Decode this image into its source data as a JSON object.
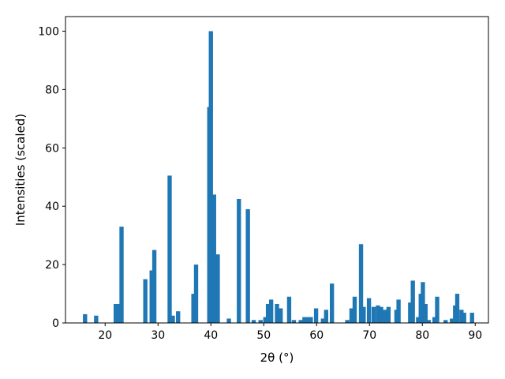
{
  "chart_data": {
    "type": "bar",
    "xlabel": "2θ (°)",
    "ylabel": "Intensities (scaled)",
    "xlim": [
      12.5,
      92.5
    ],
    "ylim": [
      0,
      105
    ],
    "xticks": [
      20,
      30,
      40,
      50,
      60,
      70,
      80,
      90
    ],
    "yticks": [
      0,
      20,
      40,
      60,
      80,
      100
    ],
    "bar_width": 0.8,
    "grid": false,
    "color": "#1f77b4",
    "x": [
      16.2,
      18.3,
      22.0,
      22.6,
      23.1,
      27.6,
      28.8,
      29.3,
      32.2,
      32.8,
      33.8,
      36.7,
      37.2,
      39.7,
      40.0,
      40.6,
      41.3,
      43.4,
      45.3,
      47.0,
      48.1,
      49.4,
      50.3,
      50.8,
      51.4,
      52.5,
      53.2,
      54.8,
      55.7,
      57.0,
      57.7,
      58.3,
      58.9,
      59.9,
      61.2,
      61.8,
      62.9,
      65.8,
      66.6,
      67.2,
      68.4,
      68.9,
      69.9,
      70.8,
      71.6,
      72.2,
      72.9,
      73.6,
      75.1,
      75.5,
      77.7,
      78.2,
      79.2,
      79.7,
      80.1,
      80.6,
      81.2,
      82.3,
      82.8,
      84.4,
      85.6,
      86.2,
      86.6,
      87.4,
      87.9,
      89.4
    ],
    "values": [
      3,
      2.5,
      6.5,
      6.5,
      33,
      15,
      18,
      25,
      50.5,
      2.5,
      4,
      10,
      20,
      74,
      100,
      44,
      23.5,
      1.5,
      42.5,
      39,
      1,
      1,
      2,
      6.5,
      8,
      6.5,
      5,
      9,
      1,
      1,
      2,
      2,
      2,
      5,
      1.5,
      4.5,
      13.5,
      1,
      5,
      9,
      27,
      5.5,
      8.5,
      5.5,
      6,
      5.5,
      4.5,
      5.5,
      4.5,
      8,
      7,
      14.5,
      2,
      10,
      14,
      6.5,
      1,
      2,
      9,
      1,
      1.5,
      6,
      10,
      4.5,
      3.5,
      3.5
    ]
  }
}
